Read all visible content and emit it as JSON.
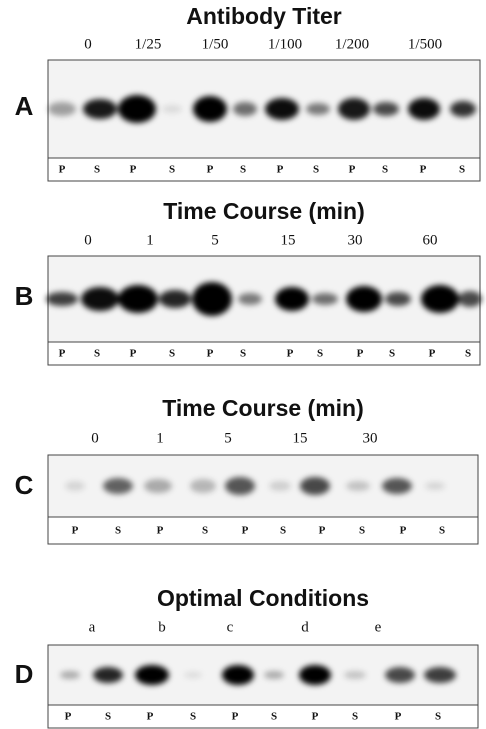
{
  "panels": [
    {
      "letter": "A",
      "title": "Antibody Titer",
      "column_labels": [
        "0",
        "1/25",
        "1/50",
        "1/100",
        "1/200",
        "1/500"
      ],
      "lanes": [
        "P",
        "S",
        "P",
        "S",
        "P",
        "S",
        "P",
        "S",
        "P",
        "S",
        "P",
        "S"
      ]
    },
    {
      "letter": "B",
      "title": "Time Course (min)",
      "column_labels": [
        "0",
        "1",
        "5",
        "15",
        "30",
        "60"
      ],
      "lanes": [
        "P",
        "S",
        "P",
        "S",
        "P",
        "S",
        "P",
        "S",
        "P",
        "S",
        "P",
        "S"
      ]
    },
    {
      "letter": "C",
      "title": "Time Course (min)",
      "column_labels": [
        "0",
        "1",
        "5",
        "15",
        "30"
      ],
      "lanes": [
        "P",
        "S",
        "P",
        "S",
        "P",
        "S",
        "P",
        "S",
        "P",
        "S"
      ]
    },
    {
      "letter": "D",
      "title": "Optimal Conditions",
      "column_labels": [
        "a",
        "b",
        "c",
        "d",
        "e"
      ],
      "lanes": [
        "P",
        "S",
        "P",
        "S",
        "P",
        "S",
        "P",
        "S",
        "P",
        "S"
      ]
    }
  ]
}
